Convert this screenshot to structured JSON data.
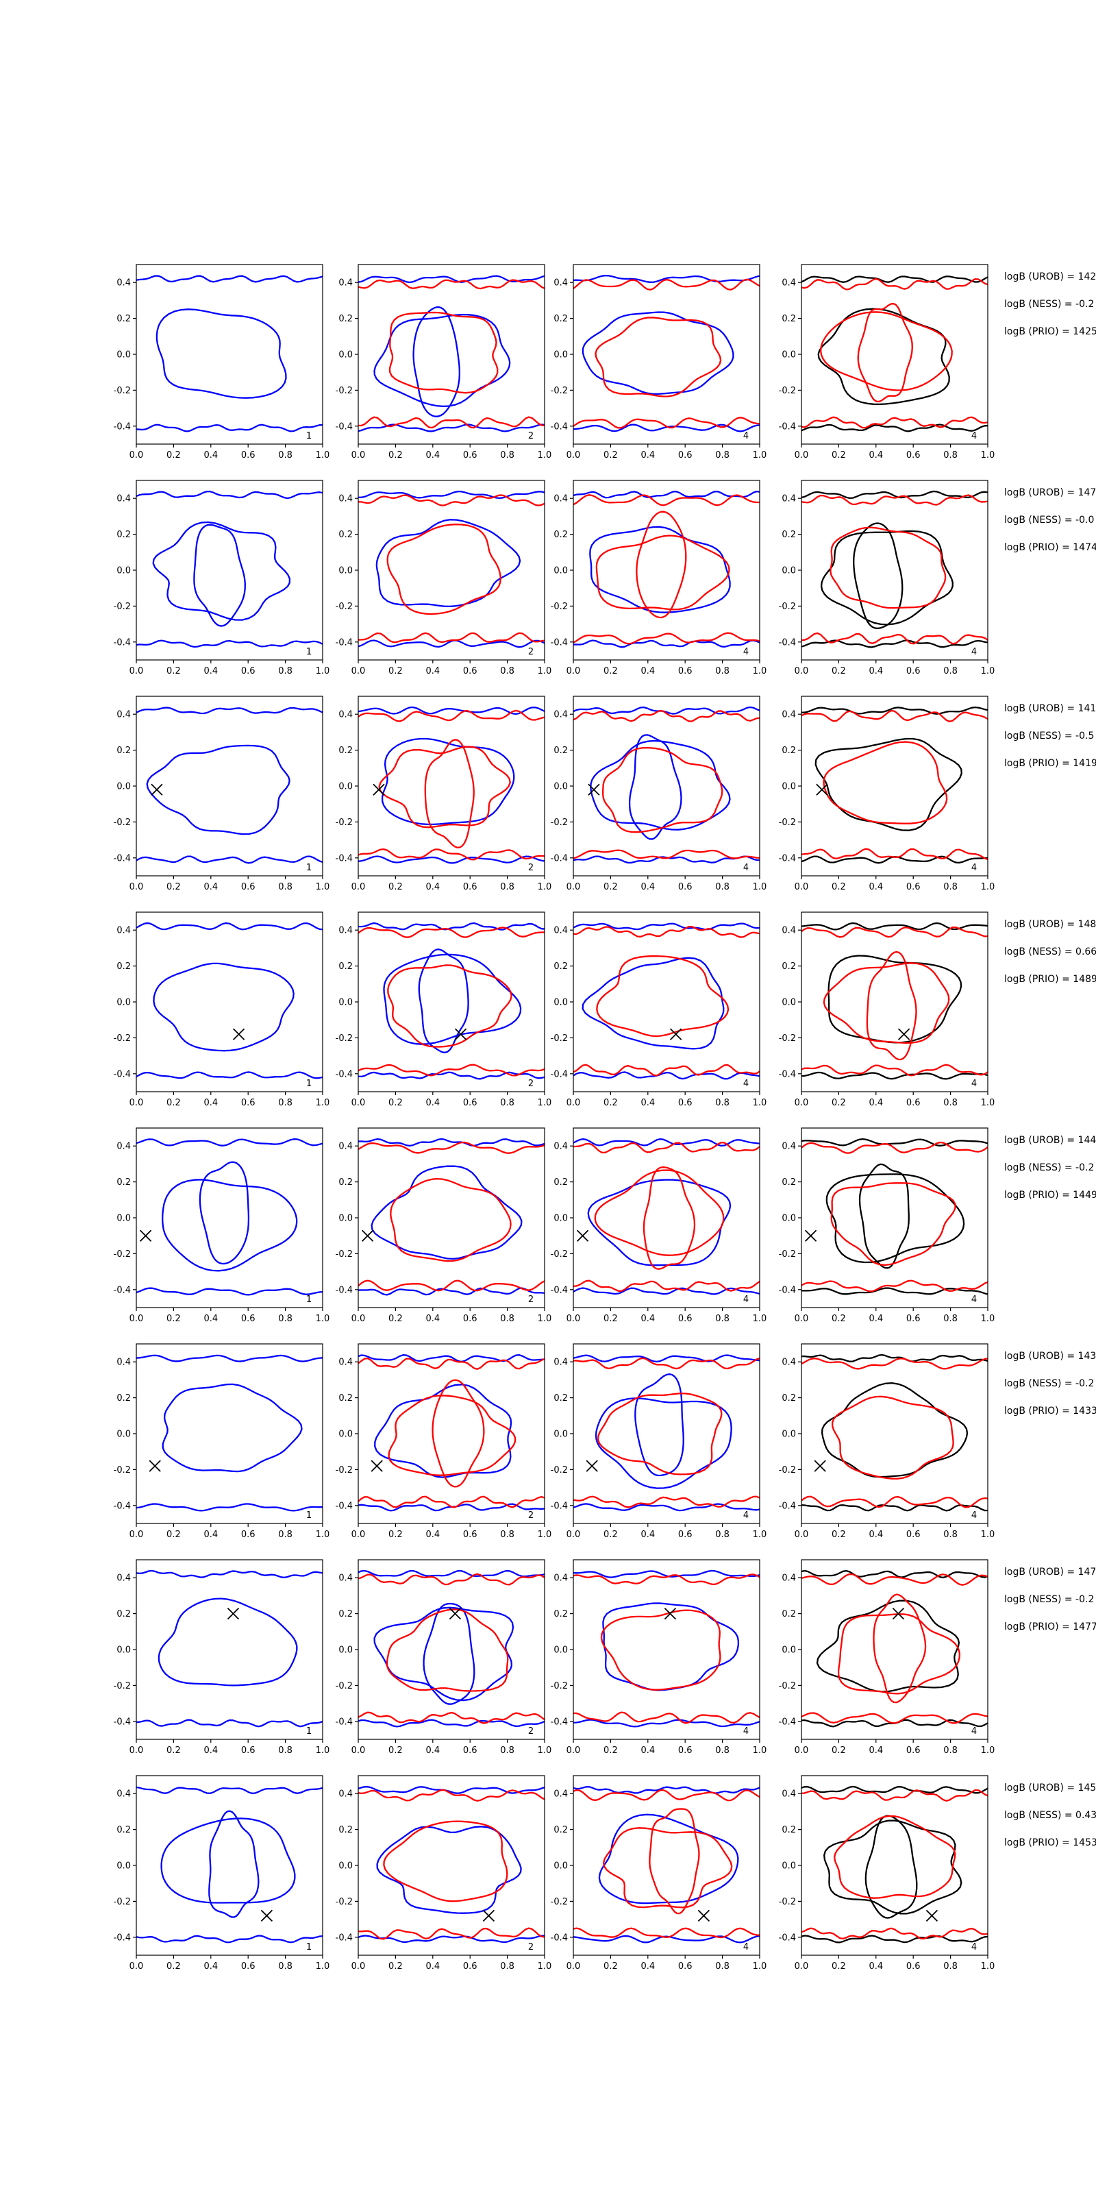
{
  "chart_data": {
    "type": "contour-grid",
    "layout": {
      "rows": 8,
      "cols": 4
    },
    "xlim": [
      0.0,
      1.0
    ],
    "ylim": [
      -0.5,
      0.5
    ],
    "xticks": [
      "0.0",
      "0.2",
      "0.4",
      "0.6",
      "0.8",
      "1.0"
    ],
    "yticks": [
      "0.4",
      "0.2",
      "0.0",
      "-0.2",
      "-0.4"
    ],
    "colors": {
      "series_a": "#0000ff",
      "series_b": "#ff0000",
      "series_c": "#000000",
      "marker": "#000000"
    },
    "column_corner_labels": [
      "1",
      "2",
      "4",
      "4"
    ],
    "column_series": [
      [
        "series_a"
      ],
      [
        "series_a",
        "series_b"
      ],
      [
        "series_a",
        "series_b"
      ],
      [
        "series_c",
        "series_b"
      ]
    ],
    "rows": [
      {
        "marker": null,
        "annotations": [
          "logB (UROB) = 142",
          "logB (NESS) = -0.2",
          "logB (PRIO) = 1425"
        ]
      },
      {
        "marker": null,
        "annotations": [
          "logB (UROB) = 147",
          "logB (NESS) = -0.0",
          "logB (PRIO) = 1474"
        ]
      },
      {
        "marker": {
          "x": 0.11,
          "y": -0.02
        },
        "annotations": [
          "logB (UROB) = 141",
          "logB (NESS) = -0.5",
          "logB (PRIO) = 1419"
        ]
      },
      {
        "marker": {
          "x": 0.55,
          "y": -0.18
        },
        "annotations": [
          "logB (UROB) = 148",
          "logB (NESS) = 0.66",
          "logB (PRIO) = 1489"
        ]
      },
      {
        "marker": {
          "x": 0.05,
          "y": -0.1
        },
        "annotations": [
          "logB (UROB) = 144",
          "logB (NESS) = -0.2",
          "logB (PRIO) = 1449"
        ]
      },
      {
        "marker": {
          "x": 0.1,
          "y": -0.18
        },
        "annotations": [
          "logB (UROB) = 143",
          "logB (NESS) = -0.2",
          "logB (PRIO) = 1433"
        ]
      },
      {
        "marker": {
          "x": 0.52,
          "y": 0.2
        },
        "annotations": [
          "logB (UROB) = 147",
          "logB (NESS) = -0.2",
          "logB (PRIO) = 1477"
        ]
      },
      {
        "marker": {
          "x": 0.7,
          "y": -0.28
        },
        "annotations": [
          "logB (UROB) = 145",
          "logB (NESS) = 0.43",
          "logB (PRIO) = 1453"
        ]
      }
    ]
  }
}
